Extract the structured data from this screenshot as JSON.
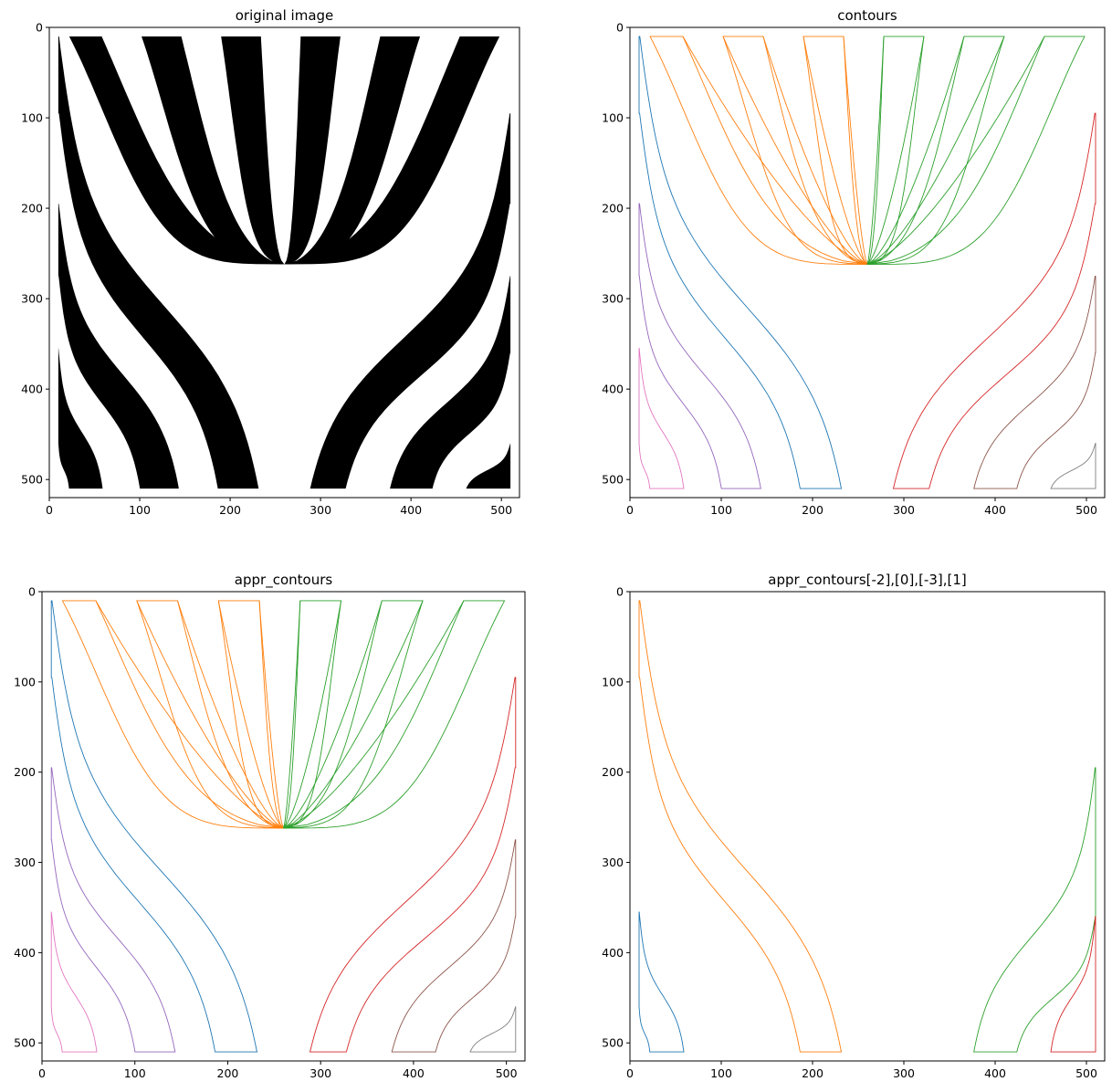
{
  "chart_data": [
    {
      "type": "image",
      "title": "original image",
      "xlim": [
        0,
        520
      ],
      "ylim": [
        520,
        0
      ],
      "xticks": [
        "0",
        "100",
        "200",
        "300",
        "400",
        "500"
      ],
      "yticks": [
        "0",
        "100",
        "200",
        "300",
        "400",
        "500"
      ],
      "description_colors": [
        "#000000",
        "#ffffff"
      ]
    },
    {
      "type": "line",
      "title": "contours",
      "xlim": [
        0,
        520
      ],
      "ylim": [
        520,
        0
      ],
      "xticks": [
        "0",
        "100",
        "200",
        "300",
        "400",
        "500"
      ],
      "yticks": [
        "0",
        "100",
        "200",
        "300",
        "400",
        "500"
      ],
      "series_colors": [
        "#1f77b4",
        "#ff7f0e",
        "#2ca02c",
        "#d62728",
        "#9467bd",
        "#8c564b",
        "#e377c2",
        "#7f7f7f"
      ]
    },
    {
      "type": "line",
      "title": "appr_contours",
      "xlim": [
        0,
        520
      ],
      "ylim": [
        520,
        0
      ],
      "xticks": [
        "0",
        "100",
        "200",
        "300",
        "400",
        "500"
      ],
      "yticks": [
        "0",
        "100",
        "200",
        "300",
        "400",
        "500"
      ],
      "series_colors": [
        "#1f77b4",
        "#ff7f0e",
        "#2ca02c",
        "#d62728",
        "#9467bd",
        "#8c564b",
        "#e377c2",
        "#7f7f7f"
      ]
    },
    {
      "type": "line",
      "title": "appr_contours[-2],[0],[-3],[1]",
      "xlim": [
        0,
        520
      ],
      "ylim": [
        520,
        0
      ],
      "xticks": [
        "0",
        "100",
        "200",
        "300",
        "400",
        "500"
      ],
      "yticks": [
        "0",
        "100",
        "200",
        "300",
        "400",
        "500"
      ],
      "series_colors": [
        "#1f77b4",
        "#ff7f0e",
        "#2ca02c",
        "#d62728"
      ]
    }
  ]
}
